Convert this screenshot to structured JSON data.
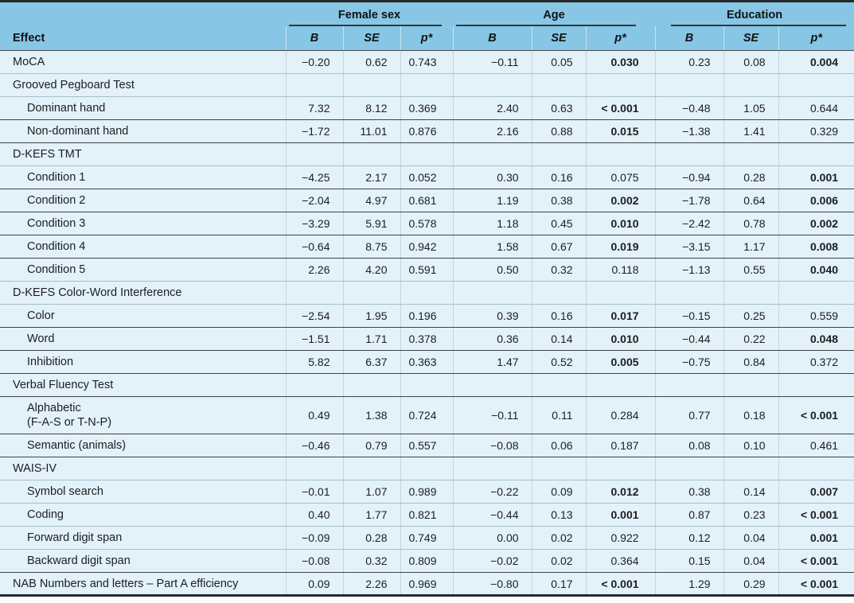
{
  "table": {
    "headers": {
      "effect": "Effect",
      "b": "B",
      "se": "SE",
      "p": "p*"
    },
    "col_groups": [
      {
        "label": "Female sex"
      },
      {
        "label": "Age"
      },
      {
        "label": "Education"
      }
    ],
    "colors": {
      "header_blue": "#87c6e4",
      "row_blue": "#e3f1f9",
      "dark_rule": "#3f4447",
      "light_rule": "#a9bfca",
      "frame_rule": "#25292c"
    },
    "rows": [
      {
        "kind": "data",
        "indent": 0,
        "label": "MoCA",
        "rule": "light",
        "cells": [
          {
            "v": "−0.20"
          },
          {
            "v": "0.62"
          },
          {
            "v": "0.743"
          },
          {
            "v": "−0.11"
          },
          {
            "v": "0.05"
          },
          {
            "v": "0.030",
            "b": true
          },
          {
            "v": "0.23"
          },
          {
            "v": "0.08"
          },
          {
            "v": "0.004",
            "b": true
          }
        ]
      },
      {
        "kind": "section",
        "label": "Grooved Pegboard Test",
        "rule": "light"
      },
      {
        "kind": "data",
        "indent": 1,
        "label": "Dominant hand",
        "rule": "dark",
        "cells": [
          {
            "v": "7.32"
          },
          {
            "v": "8.12"
          },
          {
            "v": "0.369"
          },
          {
            "v": "2.40"
          },
          {
            "v": "0.63"
          },
          {
            "v": "< 0.001",
            "b": true
          },
          {
            "v": "−0.48"
          },
          {
            "v": "1.05"
          },
          {
            "v": "0.644"
          }
        ]
      },
      {
        "kind": "data",
        "indent": 1,
        "label": "Non-dominant hand",
        "rule": "dark",
        "cells": [
          {
            "v": "−1.72"
          },
          {
            "v": "11.01"
          },
          {
            "v": "0.876"
          },
          {
            "v": "2.16"
          },
          {
            "v": "0.88"
          },
          {
            "v": "0.015",
            "b": true
          },
          {
            "v": "−1.38"
          },
          {
            "v": "1.41"
          },
          {
            "v": "0.329"
          }
        ]
      },
      {
        "kind": "section",
        "label": "D-KEFS TMT",
        "rule": "light"
      },
      {
        "kind": "data",
        "indent": 1,
        "label": "Condition 1",
        "rule": "dark",
        "cells": [
          {
            "v": "−4.25"
          },
          {
            "v": "2.17"
          },
          {
            "v": "0.052"
          },
          {
            "v": "0.30"
          },
          {
            "v": "0.16"
          },
          {
            "v": "0.075"
          },
          {
            "v": "−0.94"
          },
          {
            "v": "0.28"
          },
          {
            "v": "0.001",
            "b": true
          }
        ]
      },
      {
        "kind": "data",
        "indent": 1,
        "label": "Condition 2",
        "rule": "dark",
        "cells": [
          {
            "v": "−2.04"
          },
          {
            "v": "4.97"
          },
          {
            "v": "0.681"
          },
          {
            "v": "1.19"
          },
          {
            "v": "0.38"
          },
          {
            "v": "0.002",
            "b": true
          },
          {
            "v": "−1.78"
          },
          {
            "v": "0.64"
          },
          {
            "v": "0.006",
            "b": true
          }
        ]
      },
      {
        "kind": "data",
        "indent": 1,
        "label": "Condition 3",
        "rule": "dark",
        "cells": [
          {
            "v": "−3.29"
          },
          {
            "v": "5.91"
          },
          {
            "v": "0.578"
          },
          {
            "v": "1.18"
          },
          {
            "v": "0.45"
          },
          {
            "v": "0.010",
            "b": true
          },
          {
            "v": "−2.42"
          },
          {
            "v": "0.78"
          },
          {
            "v": "0.002",
            "b": true
          }
        ]
      },
      {
        "kind": "data",
        "indent": 1,
        "label": "Condition 4",
        "rule": "dark",
        "cells": [
          {
            "v": "−0.64"
          },
          {
            "v": "8.75"
          },
          {
            "v": "0.942"
          },
          {
            "v": "1.58"
          },
          {
            "v": "0.67"
          },
          {
            "v": "0.019",
            "b": true
          },
          {
            "v": "−3.15"
          },
          {
            "v": "1.17"
          },
          {
            "v": "0.008",
            "b": true
          }
        ]
      },
      {
        "kind": "data",
        "indent": 1,
        "label": "Condition 5",
        "rule": "light",
        "cells": [
          {
            "v": "2.26"
          },
          {
            "v": "4.20"
          },
          {
            "v": "0.591"
          },
          {
            "v": "0.50"
          },
          {
            "v": "0.32"
          },
          {
            "v": "0.118"
          },
          {
            "v": "−1.13"
          },
          {
            "v": "0.55"
          },
          {
            "v": "0.040",
            "b": true
          }
        ]
      },
      {
        "kind": "section",
        "label": "D-KEFS Color-Word Interference",
        "rule": "light"
      },
      {
        "kind": "data",
        "indent": 1,
        "label": "Color",
        "rule": "dark",
        "cells": [
          {
            "v": "−2.54"
          },
          {
            "v": "1.95"
          },
          {
            "v": "0.196"
          },
          {
            "v": "0.39"
          },
          {
            "v": "0.16"
          },
          {
            "v": "0.017",
            "b": true
          },
          {
            "v": "−0.15"
          },
          {
            "v": "0.25"
          },
          {
            "v": "0.559"
          }
        ]
      },
      {
        "kind": "data",
        "indent": 1,
        "label": "Word",
        "rule": "dark",
        "cells": [
          {
            "v": "−1.51"
          },
          {
            "v": "1.71"
          },
          {
            "v": "0.378"
          },
          {
            "v": "0.36"
          },
          {
            "v": "0.14"
          },
          {
            "v": "0.010",
            "b": true
          },
          {
            "v": "−0.44"
          },
          {
            "v": "0.22"
          },
          {
            "v": "0.048",
            "b": true
          }
        ]
      },
      {
        "kind": "data",
        "indent": 1,
        "label": "Inhibition",
        "rule": "dark",
        "cells": [
          {
            "v": "5.82"
          },
          {
            "v": "6.37"
          },
          {
            "v": "0.363"
          },
          {
            "v": "1.47"
          },
          {
            "v": "0.52"
          },
          {
            "v": "0.005",
            "b": true
          },
          {
            "v": "−0.75"
          },
          {
            "v": "0.84"
          },
          {
            "v": "0.372"
          }
        ]
      },
      {
        "kind": "section",
        "label": "Verbal Fluency Test",
        "rule": "dark"
      },
      {
        "kind": "data",
        "indent": 1,
        "label": "Alphabetic",
        "label2": "(F-A-S or T-N-P)",
        "rule": "dark",
        "tall": true,
        "cells": [
          {
            "v": "0.49"
          },
          {
            "v": "1.38"
          },
          {
            "v": "0.724"
          },
          {
            "v": "−0.11"
          },
          {
            "v": "0.11"
          },
          {
            "v": "0.284"
          },
          {
            "v": "0.77"
          },
          {
            "v": "0.18"
          },
          {
            "v": "< 0.001",
            "b": true
          }
        ]
      },
      {
        "kind": "data",
        "indent": 1,
        "label": "Semantic (animals)",
        "rule": "dark",
        "cells": [
          {
            "v": "−0.46"
          },
          {
            "v": "0.79"
          },
          {
            "v": "0.557"
          },
          {
            "v": "−0.08"
          },
          {
            "v": "0.06"
          },
          {
            "v": "0.187"
          },
          {
            "v": "0.08"
          },
          {
            "v": "0.10"
          },
          {
            "v": "0.461"
          }
        ]
      },
      {
        "kind": "section",
        "label": "WAIS-IV",
        "rule": "light"
      },
      {
        "kind": "data",
        "indent": 1,
        "label": "Symbol search",
        "rule": "light",
        "cells": [
          {
            "v": "−0.01"
          },
          {
            "v": "1.07"
          },
          {
            "v": "0.989"
          },
          {
            "v": "−0.22"
          },
          {
            "v": "0.09"
          },
          {
            "v": "0.012",
            "b": true
          },
          {
            "v": "0.38"
          },
          {
            "v": "0.14"
          },
          {
            "v": "0.007",
            "b": true
          }
        ]
      },
      {
        "kind": "data",
        "indent": 1,
        "label": "Coding",
        "rule": "light",
        "cells": [
          {
            "v": "0.40"
          },
          {
            "v": "1.77"
          },
          {
            "v": "0.821"
          },
          {
            "v": "−0.44"
          },
          {
            "v": "0.13"
          },
          {
            "v": "0.001",
            "b": true
          },
          {
            "v": "0.87"
          },
          {
            "v": "0.23"
          },
          {
            "v": "< 0.001",
            "b": true
          }
        ]
      },
      {
        "kind": "data",
        "indent": 1,
        "label": "Forward digit span",
        "rule": "light",
        "cells": [
          {
            "v": "−0.09"
          },
          {
            "v": "0.28"
          },
          {
            "v": "0.749"
          },
          {
            "v": "0.00"
          },
          {
            "v": "0.02"
          },
          {
            "v": "0.922"
          },
          {
            "v": "0.12"
          },
          {
            "v": "0.04"
          },
          {
            "v": "0.001",
            "b": true
          }
        ]
      },
      {
        "kind": "data",
        "indent": 1,
        "label": "Backward digit span",
        "rule": "dark",
        "cells": [
          {
            "v": "−0.08"
          },
          {
            "v": "0.32"
          },
          {
            "v": "0.809"
          },
          {
            "v": "−0.02"
          },
          {
            "v": "0.02"
          },
          {
            "v": "0.364"
          },
          {
            "v": "0.15"
          },
          {
            "v": "0.04"
          },
          {
            "v": "< 0.001",
            "b": true
          }
        ]
      },
      {
        "kind": "data",
        "indent": 0,
        "label": "NAB Numbers and letters – Part A efficiency",
        "rule": "none",
        "cells": [
          {
            "v": "0.09"
          },
          {
            "v": "2.26"
          },
          {
            "v": "0.969"
          },
          {
            "v": "−0.80"
          },
          {
            "v": "0.17"
          },
          {
            "v": "< 0.001",
            "b": true
          },
          {
            "v": "1.29"
          },
          {
            "v": "0.29"
          },
          {
            "v": "< 0.001",
            "b": true
          }
        ]
      }
    ]
  }
}
